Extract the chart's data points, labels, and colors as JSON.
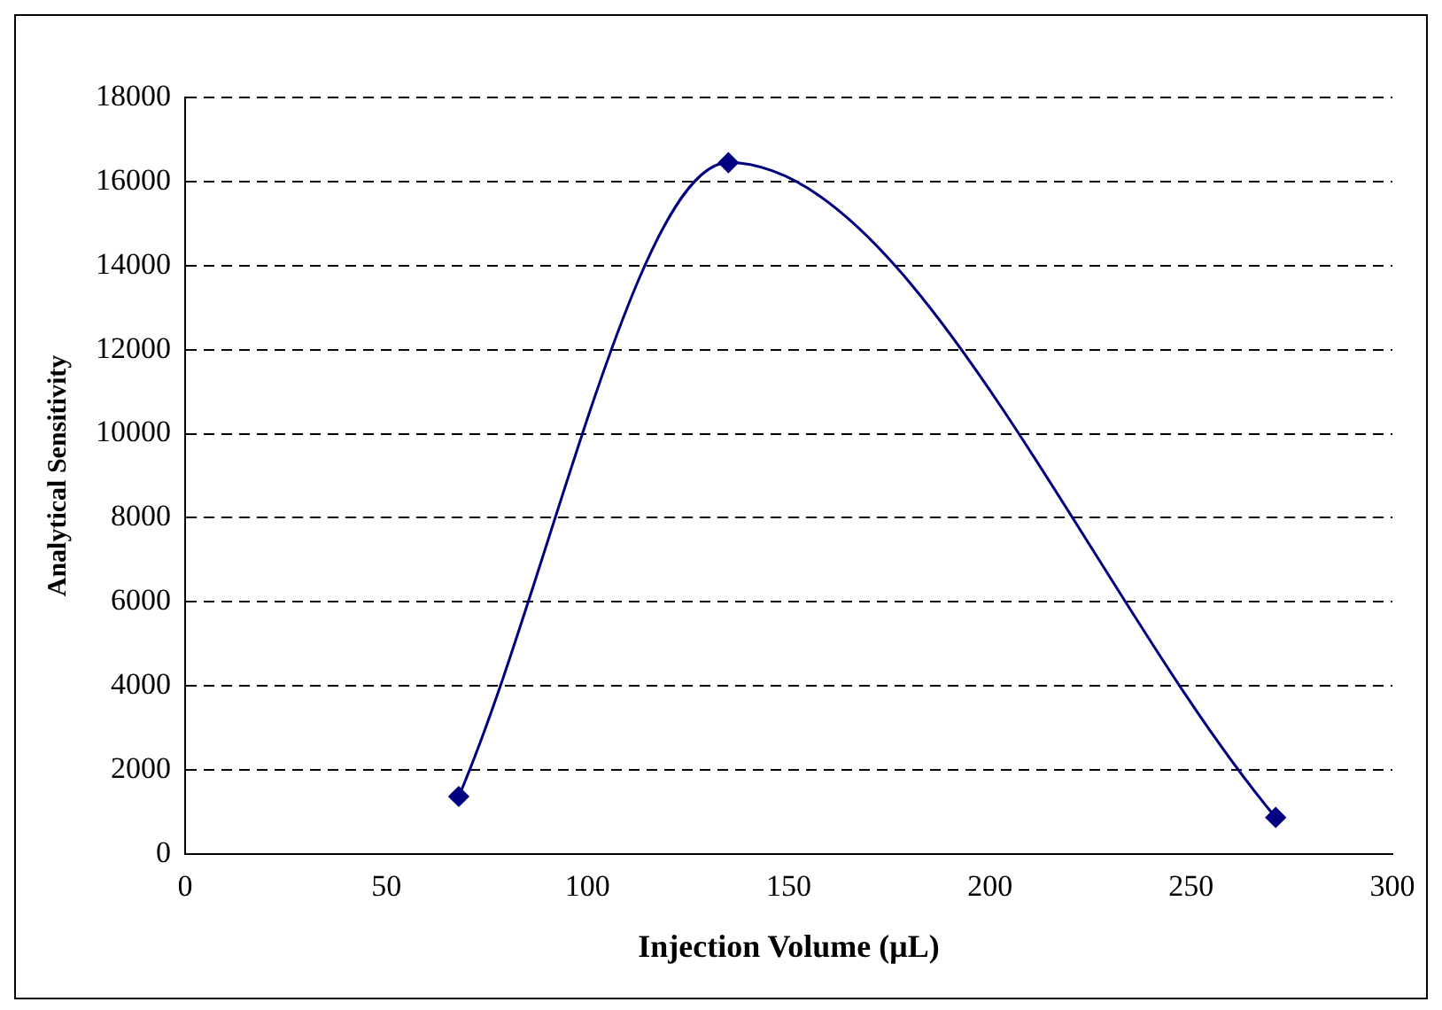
{
  "chart_data": {
    "type": "line",
    "xlabel": "Injection Volume (μL)",
    "ylabel": "Analytical Sensitivity",
    "x": [
      68,
      135,
      271
    ],
    "series": [
      {
        "color": "#000080",
        "values": [
          1370,
          16450,
          870
        ]
      }
    ],
    "xlim": [
      0,
      300
    ],
    "xticks": [
      0,
      50,
      100,
      150,
      200,
      250,
      300
    ],
    "ylim": [
      0,
      18000
    ],
    "yticks": [
      0,
      2000,
      4000,
      6000,
      8000,
      10000,
      12000,
      14000,
      16000,
      18000
    ],
    "grid": "y",
    "legend": false,
    "marker": "diamond",
    "line_style": "solid"
  }
}
